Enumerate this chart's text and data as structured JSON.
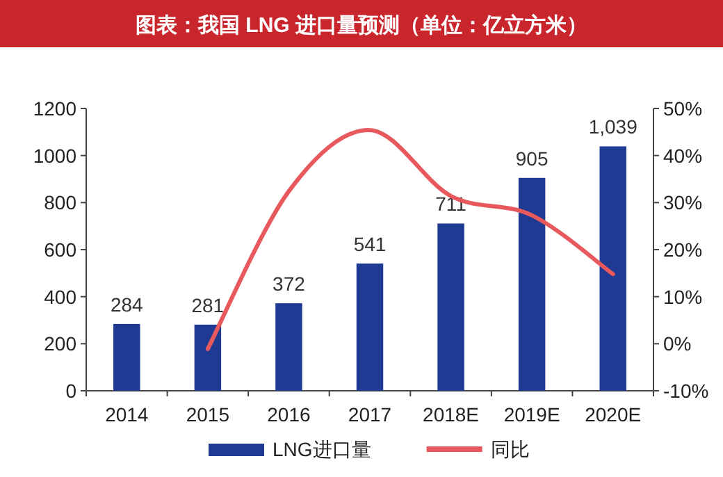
{
  "chart_data": {
    "type": "bar",
    "title": "图表：我国 LNG 进口量预测（单位：亿立方米）",
    "categories": [
      "2014",
      "2015",
      "2016",
      "2017",
      "2018E",
      "2019E",
      "2020E"
    ],
    "series": [
      {
        "name": "LNG进口量",
        "color": "#1f3a93",
        "values": [
          284,
          281,
          372,
          541,
          711,
          905,
          1039
        ],
        "value_labels": [
          "284",
          "281",
          "372",
          "541",
          "711",
          "905",
          "1,039"
        ]
      },
      {
        "name": "同比",
        "type": "line",
        "axis": "y2",
        "color": "#e8595e",
        "values": [
          null,
          -1.1,
          32.4,
          45.4,
          31.4,
          27.3,
          14.8
        ]
      }
    ],
    "ylim": [
      0,
      1200
    ],
    "yticks": [
      0,
      200,
      400,
      600,
      800,
      1000,
      1200
    ],
    "y2lim": [
      -10,
      50
    ],
    "y2ticks": [
      {
        "value": -10,
        "label": "-10%"
      },
      {
        "value": 0,
        "label": "0%"
      },
      {
        "value": 10,
        "label": "10%"
      },
      {
        "value": 20,
        "label": "20%"
      },
      {
        "value": 30,
        "label": "30%"
      },
      {
        "value": 40,
        "label": "40%"
      },
      {
        "value": 50,
        "label": "50%"
      }
    ],
    "grid": false,
    "legend": "bottom",
    "marker": "none"
  }
}
